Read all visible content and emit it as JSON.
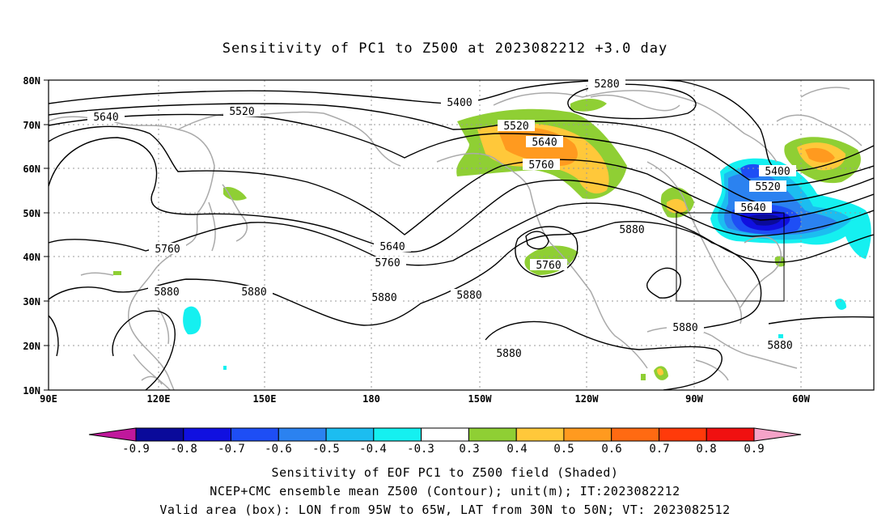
{
  "title": "Sensitivity of PC1 to Z500 at 2023082212 +3.0 day",
  "lat_labels": [
    "80N",
    "70N",
    "60N",
    "50N",
    "40N",
    "30N",
    "20N",
    "10N"
  ],
  "lon_labels": [
    "90E",
    "120E",
    "150E",
    "180",
    "150W",
    "120W",
    "90W",
    "60W"
  ],
  "contour_labels": [
    {
      "text": "5280",
      "key": "c5280"
    },
    {
      "text": "5400",
      "key": "c5400a"
    },
    {
      "text": "5520",
      "key": "c5520a"
    },
    {
      "text": "5640",
      "key": "c5640a"
    },
    {
      "text": "5520",
      "key": "c5520b"
    },
    {
      "text": "5640",
      "key": "c5640b"
    },
    {
      "text": "5760",
      "key": "c5760a"
    },
    {
      "text": "5400",
      "key": "c5400b"
    },
    {
      "text": "5520",
      "key": "c5520c"
    },
    {
      "text": "5640",
      "key": "c5640c"
    },
    {
      "text": "5880",
      "key": "c5880a"
    },
    {
      "text": "5760",
      "key": "c5760b"
    },
    {
      "text": "5640",
      "key": "c5640d"
    },
    {
      "text": "5760",
      "key": "c5760c"
    },
    {
      "text": "5760",
      "key": "c5760d"
    },
    {
      "text": "5880",
      "key": "c5880b"
    },
    {
      "text": "5880",
      "key": "c5880c"
    },
    {
      "text": "5880",
      "key": "c5880d"
    },
    {
      "text": "5880",
      "key": "c5880e"
    },
    {
      "text": "5880",
      "key": "c5880f"
    },
    {
      "text": "5880",
      "key": "c5880g"
    },
    {
      "text": "5880",
      "key": "c5880h"
    }
  ],
  "colorbar": {
    "labels": [
      "-0.9",
      "-0.8",
      "-0.7",
      "-0.6",
      "-0.5",
      "-0.4",
      "-0.3",
      "0.3",
      "0.4",
      "0.5",
      "0.6",
      "0.7",
      "0.8",
      "0.9"
    ],
    "colors": [
      "#0a0a9a",
      "#1010e0",
      "#1e4ef5",
      "#2b82f0",
      "#1cbdf0",
      "#15f0f0",
      "#ffffff",
      "#8fcf34",
      "#ffc83a",
      "#ff9a1f",
      "#ff6a12",
      "#ff3a0a",
      "#f01010"
    ],
    "low_end_color": "#c0189c",
    "high_end_color": "#f5a3c8"
  },
  "box": {
    "lon_from": "95W",
    "lon_to": "65W",
    "lat_from": "30N",
    "lat_to": "50N"
  },
  "captions": [
    "Sensitivity of EOF PC1 to Z500 field (Shaded)",
    "NCEP+CMC ensemble mean Z500 (Contour); unit(m); IT:2023082212",
    "Valid area (box): LON from 95W to 65W, LAT from 30N to 50N; VT: 2023082512"
  ]
}
